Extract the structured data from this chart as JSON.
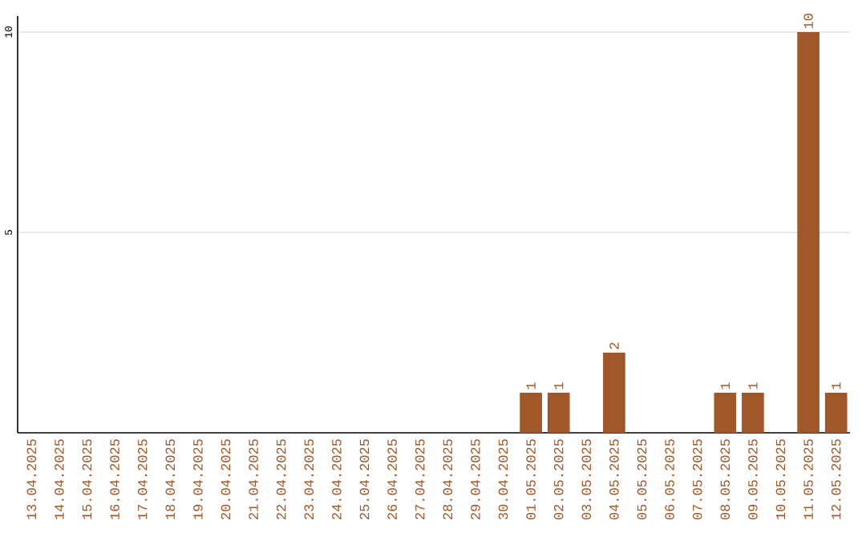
{
  "chart_data": {
    "type": "bar",
    "categories": [
      "13.04.2025",
      "14.04.2025",
      "15.04.2025",
      "16.04.2025",
      "17.04.2025",
      "18.04.2025",
      "19.04.2025",
      "20.04.2025",
      "21.04.2025",
      "22.04.2025",
      "23.04.2025",
      "24.04.2025",
      "25.04.2025",
      "26.04.2025",
      "27.04.2025",
      "28.04.2025",
      "29.04.2025",
      "30.04.2025",
      "01.05.2025",
      "02.05.2025",
      "03.05.2025",
      "04.05.2025",
      "05.05.2025",
      "06.05.2025",
      "07.05.2025",
      "08.05.2025",
      "09.05.2025",
      "10.05.2025",
      "11.05.2025",
      "12.05.2025"
    ],
    "values": [
      0,
      0,
      0,
      0,
      0,
      0,
      0,
      0,
      0,
      0,
      0,
      0,
      0,
      0,
      0,
      0,
      0,
      0,
      1,
      1,
      0,
      2,
      0,
      0,
      0,
      1,
      1,
      0,
      10,
      1
    ],
    "value_labels": [
      null,
      null,
      null,
      null,
      null,
      null,
      null,
      null,
      null,
      null,
      null,
      null,
      null,
      null,
      null,
      null,
      null,
      null,
      "1",
      "1",
      null,
      "2",
      null,
      null,
      null,
      "1",
      "1",
      null,
      "10",
      "1"
    ],
    "color": "#a0582a",
    "ylim": [
      0,
      10.4
    ],
    "yticks": [
      5,
      10
    ],
    "grid": "y"
  }
}
